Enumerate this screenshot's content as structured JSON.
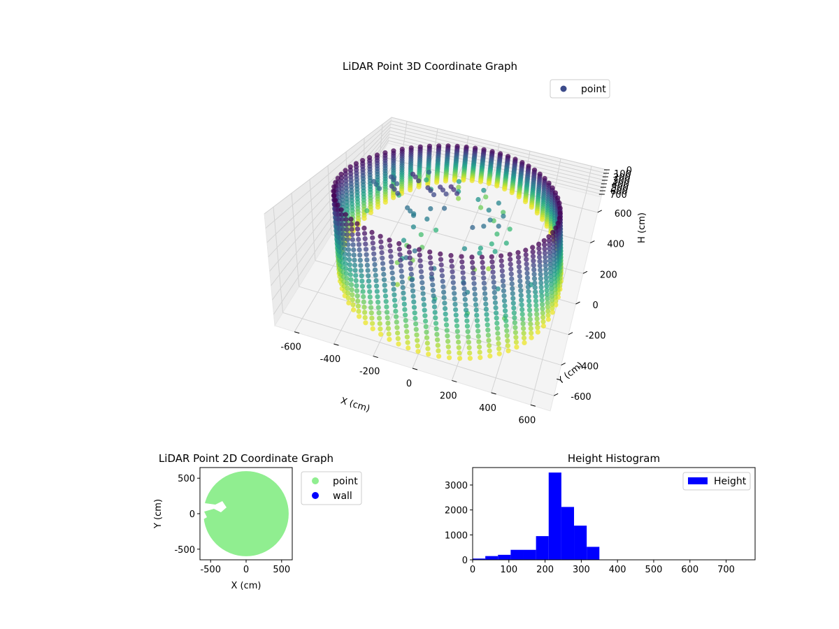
{
  "chart_data": [
    {
      "type": "scatter",
      "projection": "3d",
      "title": "LiDAR Point 3D Coordinate Graph",
      "xlabel": "X (cm)",
      "ylabel": "Y (cm)",
      "zlabel": "H (cm)",
      "xlim": [
        -700,
        700
      ],
      "ylim": [
        -700,
        700
      ],
      "zlim": [
        0,
        780
      ],
      "z_inverted": true,
      "x_ticks": [
        -600,
        -400,
        -200,
        0,
        200,
        400,
        600
      ],
      "y_ticks": [
        -600,
        -400,
        -200,
        0,
        200,
        400,
        600
      ],
      "z_ticks": [
        0,
        100,
        200,
        300,
        400,
        500,
        600,
        700
      ],
      "colormap": "viridis",
      "grid": true,
      "legend": {
        "location": "upper right",
        "entries": [
          {
            "label": "point",
            "color": "#3b4a8a"
          }
        ]
      },
      "series": [
        {
          "name": "point",
          "shape": "cylindrical wall",
          "radius": 600,
          "height_range": [
            0,
            780
          ],
          "angles_deg": 72,
          "clutter": [
            [
              -360,
              80,
              160
            ],
            [
              -300,
              220,
              120
            ],
            [
              -180,
              150,
              150
            ],
            [
              -120,
              180,
              140
            ],
            [
              -60,
              190,
              110
            ],
            [
              -420,
              200,
              210
            ],
            [
              -500,
              150,
              260
            ],
            [
              -250,
              30,
              300
            ]
          ]
        }
      ]
    },
    {
      "type": "scatter",
      "title": "LiDAR Point 2D Coordinate Graph",
      "xlabel": "X (cm)",
      "ylabel": "Y (cm)",
      "xlim": [
        -650,
        650
      ],
      "ylim": [
        -650,
        650
      ],
      "x_ticks": [
        -500,
        0,
        500
      ],
      "y_ticks": [
        -500,
        0,
        500
      ],
      "legend": {
        "location": "outside right",
        "entries": [
          {
            "label": "point",
            "color": "#90ee90"
          },
          {
            "label": "wall",
            "color": "#0000ff"
          }
        ]
      },
      "series": [
        {
          "name": "point",
          "color": "#90ee90",
          "radius": 600
        },
        {
          "name": "wall",
          "color": "#0000ff",
          "radius": 600
        }
      ]
    },
    {
      "type": "bar",
      "subtype": "histogram",
      "title": "Height Histogram",
      "xlabel": "",
      "ylabel": "",
      "xlim": [
        0,
        780
      ],
      "ylim": [
        0,
        3700
      ],
      "x_ticks": [
        0,
        100,
        200,
        300,
        400,
        500,
        600,
        700
      ],
      "y_ticks": [
        0,
        1000,
        2000,
        3000
      ],
      "bin_edges": [
        0,
        35,
        70,
        105,
        140,
        175,
        210,
        245,
        280,
        315,
        350,
        385,
        420,
        455,
        490,
        525,
        560,
        595,
        630,
        665,
        700,
        735,
        770
      ],
      "values": [
        50,
        150,
        200,
        400,
        400,
        950,
        3500,
        2120,
        1370,
        520,
        10,
        10,
        10,
        10,
        10,
        10,
        10,
        10,
        10,
        10,
        10,
        10
      ],
      "color": "#0000ff",
      "legend": {
        "location": "upper right",
        "entries": [
          {
            "label": "Height",
            "color": "#0000ff"
          }
        ]
      }
    }
  ]
}
